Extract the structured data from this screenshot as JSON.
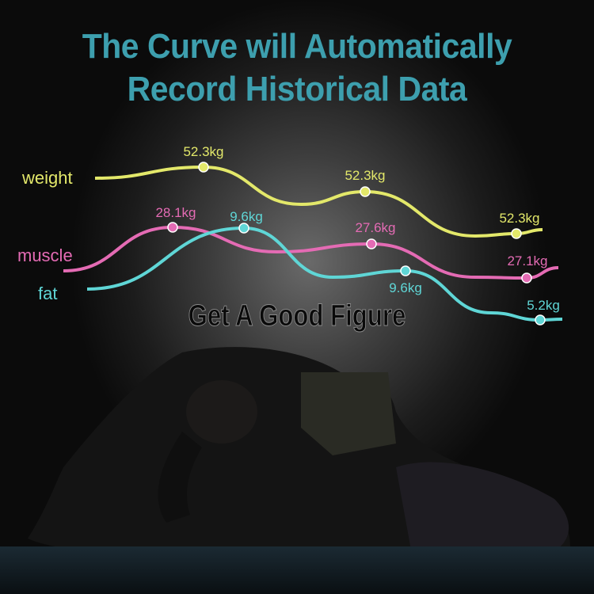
{
  "title": {
    "line1": "The Curve will Automatically",
    "line2": "Record Historical Data",
    "color": "#3d9fae"
  },
  "slogan": "Get A Good Figure",
  "chart_data": {
    "type": "line",
    "title": "The Curve will Automatically Record Historical Data",
    "series": [
      {
        "name": "weight",
        "color": "#e3e86a",
        "labels": [
          "52.3kg",
          "52.3kg",
          "52.3kg"
        ],
        "values": [
          52.3,
          52.3,
          52.3
        ]
      },
      {
        "name": "muscle",
        "color": "#e46bb4",
        "labels": [
          "28.1kg",
          "27.6kg",
          "27.1kg"
        ],
        "values": [
          28.1,
          27.6,
          27.1
        ]
      },
      {
        "name": "fat",
        "color": "#5fd6d6",
        "labels": [
          "9.6kg",
          "9.6kg",
          "5.2kg"
        ],
        "values": [
          9.6,
          9.6,
          5.2
        ]
      }
    ],
    "axes": "none",
    "grid": false
  }
}
